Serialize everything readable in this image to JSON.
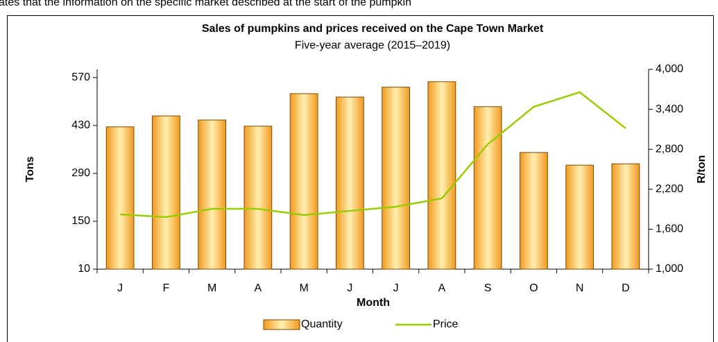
{
  "caption_fragment": "ates that the information on the specific market described at the start of the pumpkin",
  "chart_data": {
    "type": "bar",
    "title": "Sales of pumpkins and prices received on the Cape Town Market",
    "subtitle": "Five-year average (2015–2019)",
    "x_label": "Month",
    "y_label": "Tons",
    "y2_label": "R/ton",
    "categories": [
      "J",
      "F",
      "M",
      "A",
      "M",
      "J",
      "J",
      "A",
      "S",
      "O",
      "N",
      "D"
    ],
    "series": [
      {
        "name": "Quantity",
        "type": "bar",
        "color": "#f5a623",
        "values": [
          426,
          458,
          446,
          428,
          523,
          513,
          542,
          558,
          485,
          351,
          314,
          318
        ]
      },
      {
        "name": "Price",
        "type": "line",
        "axis": "y2",
        "color": "#99cc00",
        "values": [
          1823,
          1781,
          1906,
          1906,
          1813,
          1875,
          1938,
          2063,
          2875,
          3438,
          3657,
          3115
        ]
      }
    ],
    "ylim": [
      10,
      594
    ],
    "yticks": [
      10,
      150,
      290,
      430,
      570
    ],
    "y2lim": [
      1000,
      4000
    ],
    "y2ticks": [
      {
        "value": 1000,
        "label": "1,000"
      },
      {
        "value": 1600,
        "label": "1,600"
      },
      {
        "value": 2200,
        "label": "2,200"
      },
      {
        "value": 2800,
        "label": "2,800"
      },
      {
        "value": 3400,
        "label": "3,400"
      },
      {
        "value": 4000,
        "label": "4,000"
      }
    ],
    "grid": false,
    "legend": "bottom"
  }
}
